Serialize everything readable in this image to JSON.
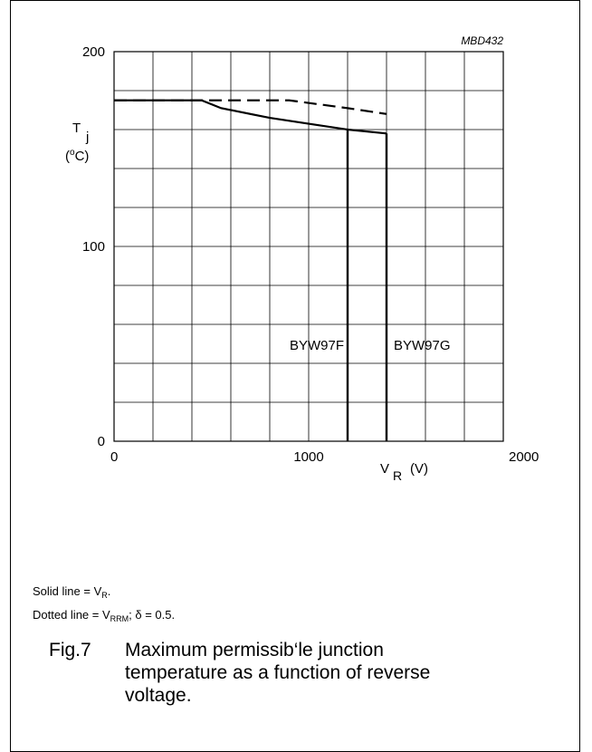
{
  "chart_data": {
    "type": "line",
    "figure_code": "MBD432",
    "xlabel_symbol": "V",
    "xlabel_sub": "R",
    "xlabel_unit": "(V)",
    "ylabel_symbol": "T",
    "ylabel_sub": "j",
    "ylabel_unit_open": "(",
    "ylabel_unit_sup": "o",
    "ylabel_unit_close": "C)",
    "xlim": [
      0,
      2000
    ],
    "ylim": [
      0,
      200
    ],
    "x_ticks": [
      0,
      1000,
      2000
    ],
    "y_ticks": [
      0,
      100,
      200
    ],
    "x_tick_labels": [
      "0",
      "1000",
      "2000"
    ],
    "y_tick_labels": [
      "0",
      "100",
      "200"
    ],
    "grid": true,
    "grid_x_step": 200,
    "grid_y_step": 20,
    "series": [
      {
        "style": "solid",
        "x": [
          0,
          450,
          550,
          800,
          1000,
          1200,
          1400
        ],
        "y": [
          175,
          175,
          171,
          166,
          163,
          160,
          158
        ]
      },
      {
        "style": "dashed",
        "x": [
          0,
          900,
          1200,
          1400
        ],
        "y": [
          175,
          175,
          171,
          168
        ]
      }
    ],
    "verticals": [
      {
        "x": 1200,
        "y_top": 160,
        "label": "BYW97F"
      },
      {
        "x": 1400,
        "y_top": 158,
        "label": "BYW97G"
      }
    ]
  },
  "notes": {
    "solid_prefix": "Solid line = V",
    "solid_sub": "R",
    "solid_suffix": ".",
    "dotted_prefix": "Dotted line = V",
    "dotted_sub": "RRM",
    "dotted_suffix": "; δ = 0.5."
  },
  "caption": {
    "number": "Fig.7",
    "text": "Maximum permissib‘le junction temperature as a function of reverse voltage."
  }
}
